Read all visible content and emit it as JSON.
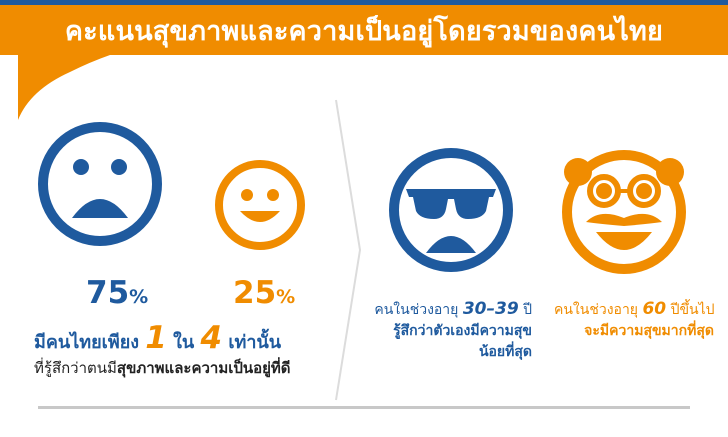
{
  "colors": {
    "blue": "#1f5a9e",
    "orange": "#f08c00"
  },
  "header": {
    "title": "คะแนนสุขภาพและความเป็นอยู่โดยรวมของคนไทย"
  },
  "left": {
    "sad_face_icon": "sad-face-icon",
    "happy_face_icon": "smiling-face-icon",
    "sad_pct": "75",
    "happy_pct": "25",
    "pct_sign": "%",
    "summary_part1": "มีคนไทยเพียง ",
    "summary_num1": "1",
    "summary_mid": " ใน ",
    "summary_num2": "4",
    "summary_part2": " เท่านั้น",
    "detail_prefix": "ที่รู้สึกว่าตนมี",
    "detail_bold": "สุขภาพและความเป็นอยู่ที่ดี"
  },
  "middle": {
    "icon": "sunglasses-face-icon",
    "age_prefix": "คนในช่วงอายุ ",
    "age_range": "30–39",
    "age_suffix": " ปี",
    "line2": "รู้สึกว่าตัวเองมีความสุข",
    "line3": "น้อยที่สุด"
  },
  "right": {
    "icon": "mustache-elder-face-icon",
    "age_prefix": "คนในช่วงอายุ ",
    "age_num": "60",
    "age_suffix": " ปีขึ้นไป",
    "line2": "จะมีความสุขมากที่สุด"
  }
}
